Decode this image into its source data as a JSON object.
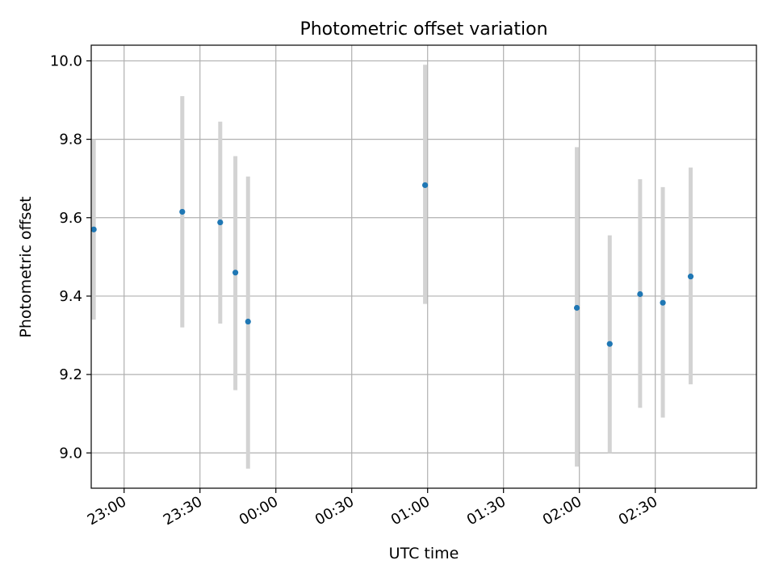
{
  "chart_data": {
    "type": "scatter",
    "title": "Photometric offset variation",
    "xlabel": "UTC time",
    "ylabel": "Photometric offset",
    "x_unit": "UTC time (HH:MM), first tick 23:00 on night 1, later ticks past midnight",
    "xlim": [
      "22:47",
      "03:10"
    ],
    "ylim": [
      8.91,
      10.04
    ],
    "grid": true,
    "x_ticks": [
      "23:00",
      "23:30",
      "00:00",
      "00:30",
      "01:00",
      "01:30",
      "02:00",
      "02:30"
    ],
    "y_ticks": [
      "9.0",
      "9.2",
      "9.4",
      "9.6",
      "9.8",
      "10.0"
    ],
    "colors": {
      "points": "#1f77b4",
      "errorbars": "#d3d3d3",
      "grid": "#b0b0b0"
    },
    "series": [
      {
        "points": [
          {
            "x": "22:48",
            "y": 9.57,
            "ylow": 9.34,
            "yhigh": 9.8
          },
          {
            "x": "23:23",
            "y": 9.615,
            "ylow": 9.32,
            "yhigh": 9.91
          },
          {
            "x": "23:38",
            "y": 9.588,
            "ylow": 9.33,
            "yhigh": 9.845
          },
          {
            "x": "23:44",
            "y": 9.46,
            "ylow": 9.16,
            "yhigh": 9.757
          },
          {
            "x": "23:49",
            "y": 9.335,
            "ylow": 8.96,
            "yhigh": 9.705
          },
          {
            "x": "00:59",
            "y": 9.683,
            "ylow": 9.38,
            "yhigh": 9.99
          },
          {
            "x": "01:59",
            "y": 9.37,
            "ylow": 8.965,
            "yhigh": 9.78
          },
          {
            "x": "02:12",
            "y": 9.278,
            "ylow": 9.0,
            "yhigh": 9.555
          },
          {
            "x": "02:24",
            "y": 9.405,
            "ylow": 9.115,
            "yhigh": 9.698
          },
          {
            "x": "02:33",
            "y": 9.383,
            "ylow": 9.09,
            "yhigh": 9.678
          },
          {
            "x": "02:44",
            "y": 9.45,
            "ylow": 9.175,
            "yhigh": 9.728
          }
        ]
      }
    ]
  }
}
